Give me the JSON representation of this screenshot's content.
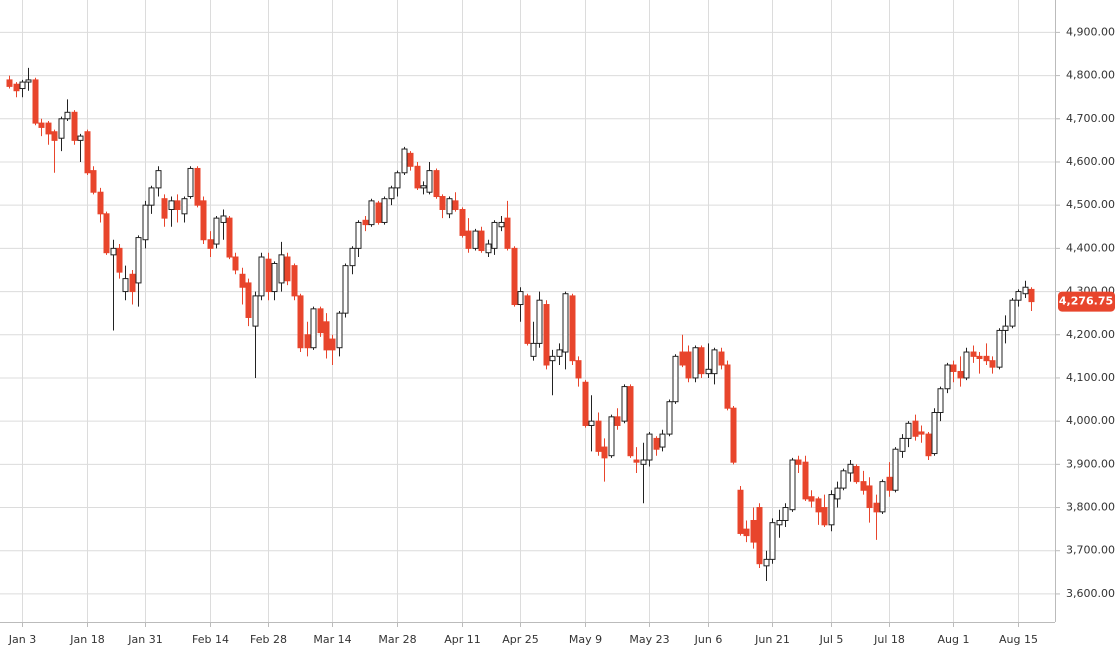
{
  "chart_data": {
    "type": "candlestick",
    "categories": [
      null,
      null,
      "Jan 3",
      null,
      null,
      null,
      null,
      null,
      null,
      null,
      null,
      null,
      "Jan 18",
      null,
      null,
      null,
      null,
      null,
      null,
      null,
      null,
      "Jan 31",
      null,
      null,
      null,
      null,
      null,
      null,
      null,
      null,
      null,
      "Feb 14",
      null,
      null,
      null,
      null,
      null,
      null,
      null,
      null,
      "Feb 28",
      null,
      null,
      null,
      null,
      null,
      null,
      null,
      null,
      null,
      "Mar 14",
      null,
      null,
      null,
      null,
      null,
      null,
      null,
      null,
      null,
      "Mar 28",
      null,
      null,
      null,
      null,
      null,
      null,
      null,
      null,
      null,
      "Apr 11",
      null,
      null,
      null,
      null,
      null,
      null,
      null,
      null,
      "Apr 25",
      null,
      null,
      null,
      null,
      null,
      null,
      null,
      null,
      null,
      "May 9",
      null,
      null,
      null,
      null,
      null,
      null,
      null,
      null,
      null,
      "May 23",
      null,
      null,
      null,
      null,
      null,
      null,
      null,
      null,
      "Jun 6",
      null,
      null,
      null,
      null,
      null,
      null,
      null,
      null,
      null,
      "Jun 21",
      null,
      null,
      null,
      null,
      null,
      null,
      null,
      null,
      "Jul 5",
      null,
      null,
      null,
      null,
      null,
      null,
      null,
      null,
      "Jul 18",
      null,
      null,
      null,
      null,
      null,
      null,
      null,
      null,
      null,
      "Aug 1",
      null,
      null,
      null,
      null,
      null,
      null,
      null,
      null,
      null,
      "Aug 15",
      null,
      null
    ],
    "open": [
      4790,
      4780,
      4770,
      4785,
      4790,
      4690,
      4690,
      4670,
      4655,
      4700,
      4715,
      4650,
      4670,
      4580,
      4530,
      4480,
      4385,
      4400,
      4300,
      4340,
      4320,
      4420,
      4500,
      4540,
      4515,
      4490,
      4510,
      4480,
      4520,
      4585,
      4510,
      4420,
      4410,
      4460,
      4470,
      4380,
      4340,
      4320,
      4220,
      4290,
      4375,
      4300,
      4320,
      4380,
      4360,
      4290,
      4200,
      4170,
      4260,
      4230,
      4190,
      4170,
      4250,
      4360,
      4400,
      4465,
      4455,
      4505,
      4460,
      4515,
      4540,
      4575,
      4620,
      4590,
      4540,
      4530,
      4580,
      4520,
      4480,
      4510,
      4490,
      4440,
      4400,
      4440,
      4390,
      4400,
      4450,
      4470,
      4400,
      4270,
      4290,
      4150,
      4180,
      4270,
      4140,
      4150,
      4160,
      4290,
      4140,
      4090,
      3990,
      4000,
      3940,
      3920,
      4010,
      4000,
      4080,
      3910,
      3900,
      3910,
      3960,
      3940,
      3970,
      4045,
      4160,
      4160,
      4100,
      4170,
      4110,
      4110,
      4160,
      4130,
      4030,
      3840,
      3750,
      3770,
      3800,
      3665,
      3680,
      3760,
      3770,
      3795,
      3910,
      3905,
      3825,
      3820,
      3800,
      3760,
      3820,
      3845,
      3880,
      3895,
      3860,
      3850,
      3810,
      3790,
      3870,
      3840,
      3930,
      3960,
      4000,
      3975,
      3970,
      3925,
      4020,
      4075,
      4130,
      4115,
      4100,
      4160,
      4150,
      4150,
      4140,
      4125,
      4210,
      4220,
      4280,
      4295,
      4305
    ],
    "high": [
      4800,
      4785,
      4790,
      4818,
      4795,
      4700,
      4695,
      4675,
      4705,
      4745,
      4720,
      4665,
      4675,
      4590,
      4540,
      4485,
      4420,
      4410,
      4360,
      4350,
      4430,
      4510,
      4545,
      4590,
      4525,
      4520,
      4525,
      4520,
      4590,
      4590,
      4520,
      4440,
      4475,
      4490,
      4475,
      4390,
      4355,
      4330,
      4300,
      4390,
      4390,
      4370,
      4415,
      4390,
      4365,
      4295,
      4230,
      4265,
      4265,
      4250,
      4200,
      4255,
      4365,
      4405,
      4465,
      4475,
      4515,
      4510,
      4520,
      4545,
      4580,
      4635,
      4625,
      4600,
      4555,
      4600,
      4585,
      4525,
      4520,
      4530,
      4495,
      4470,
      4445,
      4450,
      4420,
      4465,
      4475,
      4510,
      4405,
      4310,
      4295,
      4230,
      4300,
      4280,
      4165,
      4180,
      4300,
      4295,
      4150,
      4095,
      4060,
      4020,
      3960,
      4015,
      4030,
      4085,
      4085,
      3940,
      3950,
      3975,
      3965,
      3980,
      4050,
      4155,
      4200,
      4175,
      4175,
      4175,
      4180,
      4170,
      4170,
      4140,
      4035,
      3850,
      3770,
      3800,
      3810,
      3700,
      3775,
      3795,
      3810,
      3915,
      3920,
      3920,
      3840,
      3825,
      3830,
      3840,
      3860,
      3890,
      3910,
      3900,
      3885,
      3870,
      3830,
      3865,
      3905,
      3940,
      3970,
      4000,
      4015,
      3990,
      3975,
      4030,
      4080,
      4135,
      4140,
      4150,
      4170,
      4175,
      4160,
      4180,
      4150,
      4215,
      4245,
      4285,
      4305,
      4325,
      4310
    ],
    "low": [
      4770,
      4750,
      4750,
      4765,
      4685,
      4660,
      4640,
      4575,
      4625,
      4695,
      4640,
      4600,
      4570,
      4525,
      4460,
      4385,
      4210,
      4330,
      4280,
      4270,
      4265,
      4400,
      4480,
      4520,
      4450,
      4450,
      4460,
      4460,
      4515,
      4495,
      4410,
      4380,
      4400,
      4420,
      4375,
      4340,
      4270,
      4220,
      4100,
      4280,
      4280,
      4280,
      4300,
      4315,
      4280,
      4160,
      4150,
      4165,
      4195,
      4145,
      4130,
      4150,
      4240,
      4340,
      4380,
      4440,
      4450,
      4455,
      4455,
      4500,
      4520,
      4570,
      4580,
      4535,
      4525,
      4525,
      4515,
      4470,
      4470,
      4485,
      4425,
      4390,
      4395,
      4390,
      4380,
      4385,
      4440,
      4395,
      4265,
      4230,
      4175,
      4140,
      4170,
      4120,
      4060,
      4130,
      4120,
      4130,
      4080,
      3985,
      3930,
      3920,
      3860,
      3915,
      3980,
      3995,
      3915,
      3880,
      3810,
      3895,
      3920,
      3930,
      3965,
      4040,
      4125,
      4090,
      4090,
      4100,
      4100,
      4085,
      4120,
      4025,
      3900,
      3735,
      3720,
      3705,
      3660,
      3630,
      3670,
      3730,
      3755,
      3790,
      3880,
      3815,
      3800,
      3760,
      3755,
      3745,
      3800,
      3840,
      3860,
      3855,
      3830,
      3765,
      3725,
      3785,
      3825,
      3835,
      3915,
      3940,
      3955,
      3950,
      3910,
      3920,
      4000,
      4065,
      4090,
      4080,
      4095,
      4135,
      4110,
      4130,
      4110,
      4120,
      4180,
      4215,
      4265,
      4285,
      4255
    ],
    "close": [
      4775,
      4765,
      4785,
      4790,
      4690,
      4680,
      4665,
      4650,
      4700,
      4715,
      4650,
      4660,
      4575,
      4530,
      4480,
      4390,
      4400,
      4345,
      4330,
      4300,
      4425,
      4500,
      4540,
      4580,
      4470,
      4510,
      4490,
      4515,
      4585,
      4500,
      4420,
      4400,
      4470,
      4475,
      4380,
      4350,
      4310,
      4240,
      4290,
      4380,
      4300,
      4365,
      4385,
      4325,
      4290,
      4170,
      4170,
      4260,
      4205,
      4165,
      4165,
      4250,
      4360,
      4400,
      4460,
      4455,
      4510,
      4460,
      4515,
      4540,
      4575,
      4630,
      4590,
      4540,
      4545,
      4580,
      4520,
      4490,
      4515,
      4490,
      4430,
      4400,
      4440,
      4395,
      4410,
      4460,
      4460,
      4400,
      4270,
      4300,
      4180,
      4180,
      4280,
      4130,
      4150,
      4165,
      4295,
      4140,
      4100,
      3990,
      4000,
      3930,
      3915,
      4010,
      3990,
      4080,
      3920,
      3905,
      3910,
      3970,
      3935,
      3970,
      4045,
      4150,
      4130,
      4100,
      4170,
      4110,
      4120,
      4165,
      4130,
      4030,
      3905,
      3740,
      3735,
      3720,
      3670,
      3680,
      3765,
      3770,
      3800,
      3910,
      3900,
      3820,
      3815,
      3790,
      3760,
      3830,
      3845,
      3885,
      3900,
      3860,
      3840,
      3800,
      3790,
      3860,
      3840,
      3935,
      3960,
      3995,
      3965,
      3970,
      3920,
      4020,
      4075,
      4130,
      4115,
      4100,
      4160,
      4150,
      4145,
      4140,
      4125,
      4210,
      4220,
      4280,
      4300,
      4310,
      4276.75
    ],
    "up_color": "#ffffff",
    "down_color": "#e8452c",
    "ylim": [
      3535,
      4975
    ],
    "yticks": [
      {
        "value": 3600,
        "label": "3,600.00"
      },
      {
        "value": 3700,
        "label": "3,700.00"
      },
      {
        "value": 3800,
        "label": "3,800.00"
      },
      {
        "value": 3900,
        "label": "3,900.00"
      },
      {
        "value": 4000,
        "label": "4,000.00"
      },
      {
        "value": 4100,
        "label": "4,100.00"
      },
      {
        "value": 4200,
        "label": "4,200.00"
      },
      {
        "value": 4300,
        "label": "4,300.00"
      },
      {
        "value": 4400,
        "label": "4,400.00"
      },
      {
        "value": 4500,
        "label": "4,500.00"
      },
      {
        "value": 4600,
        "label": "4,600.00"
      },
      {
        "value": 4700,
        "label": "4,700.00"
      },
      {
        "value": 4800,
        "label": "4,800.00"
      },
      {
        "value": 4900,
        "label": "4,900.00"
      }
    ],
    "last_price": {
      "value": 4276.75,
      "label": "4,276.75"
    },
    "grid": true
  }
}
